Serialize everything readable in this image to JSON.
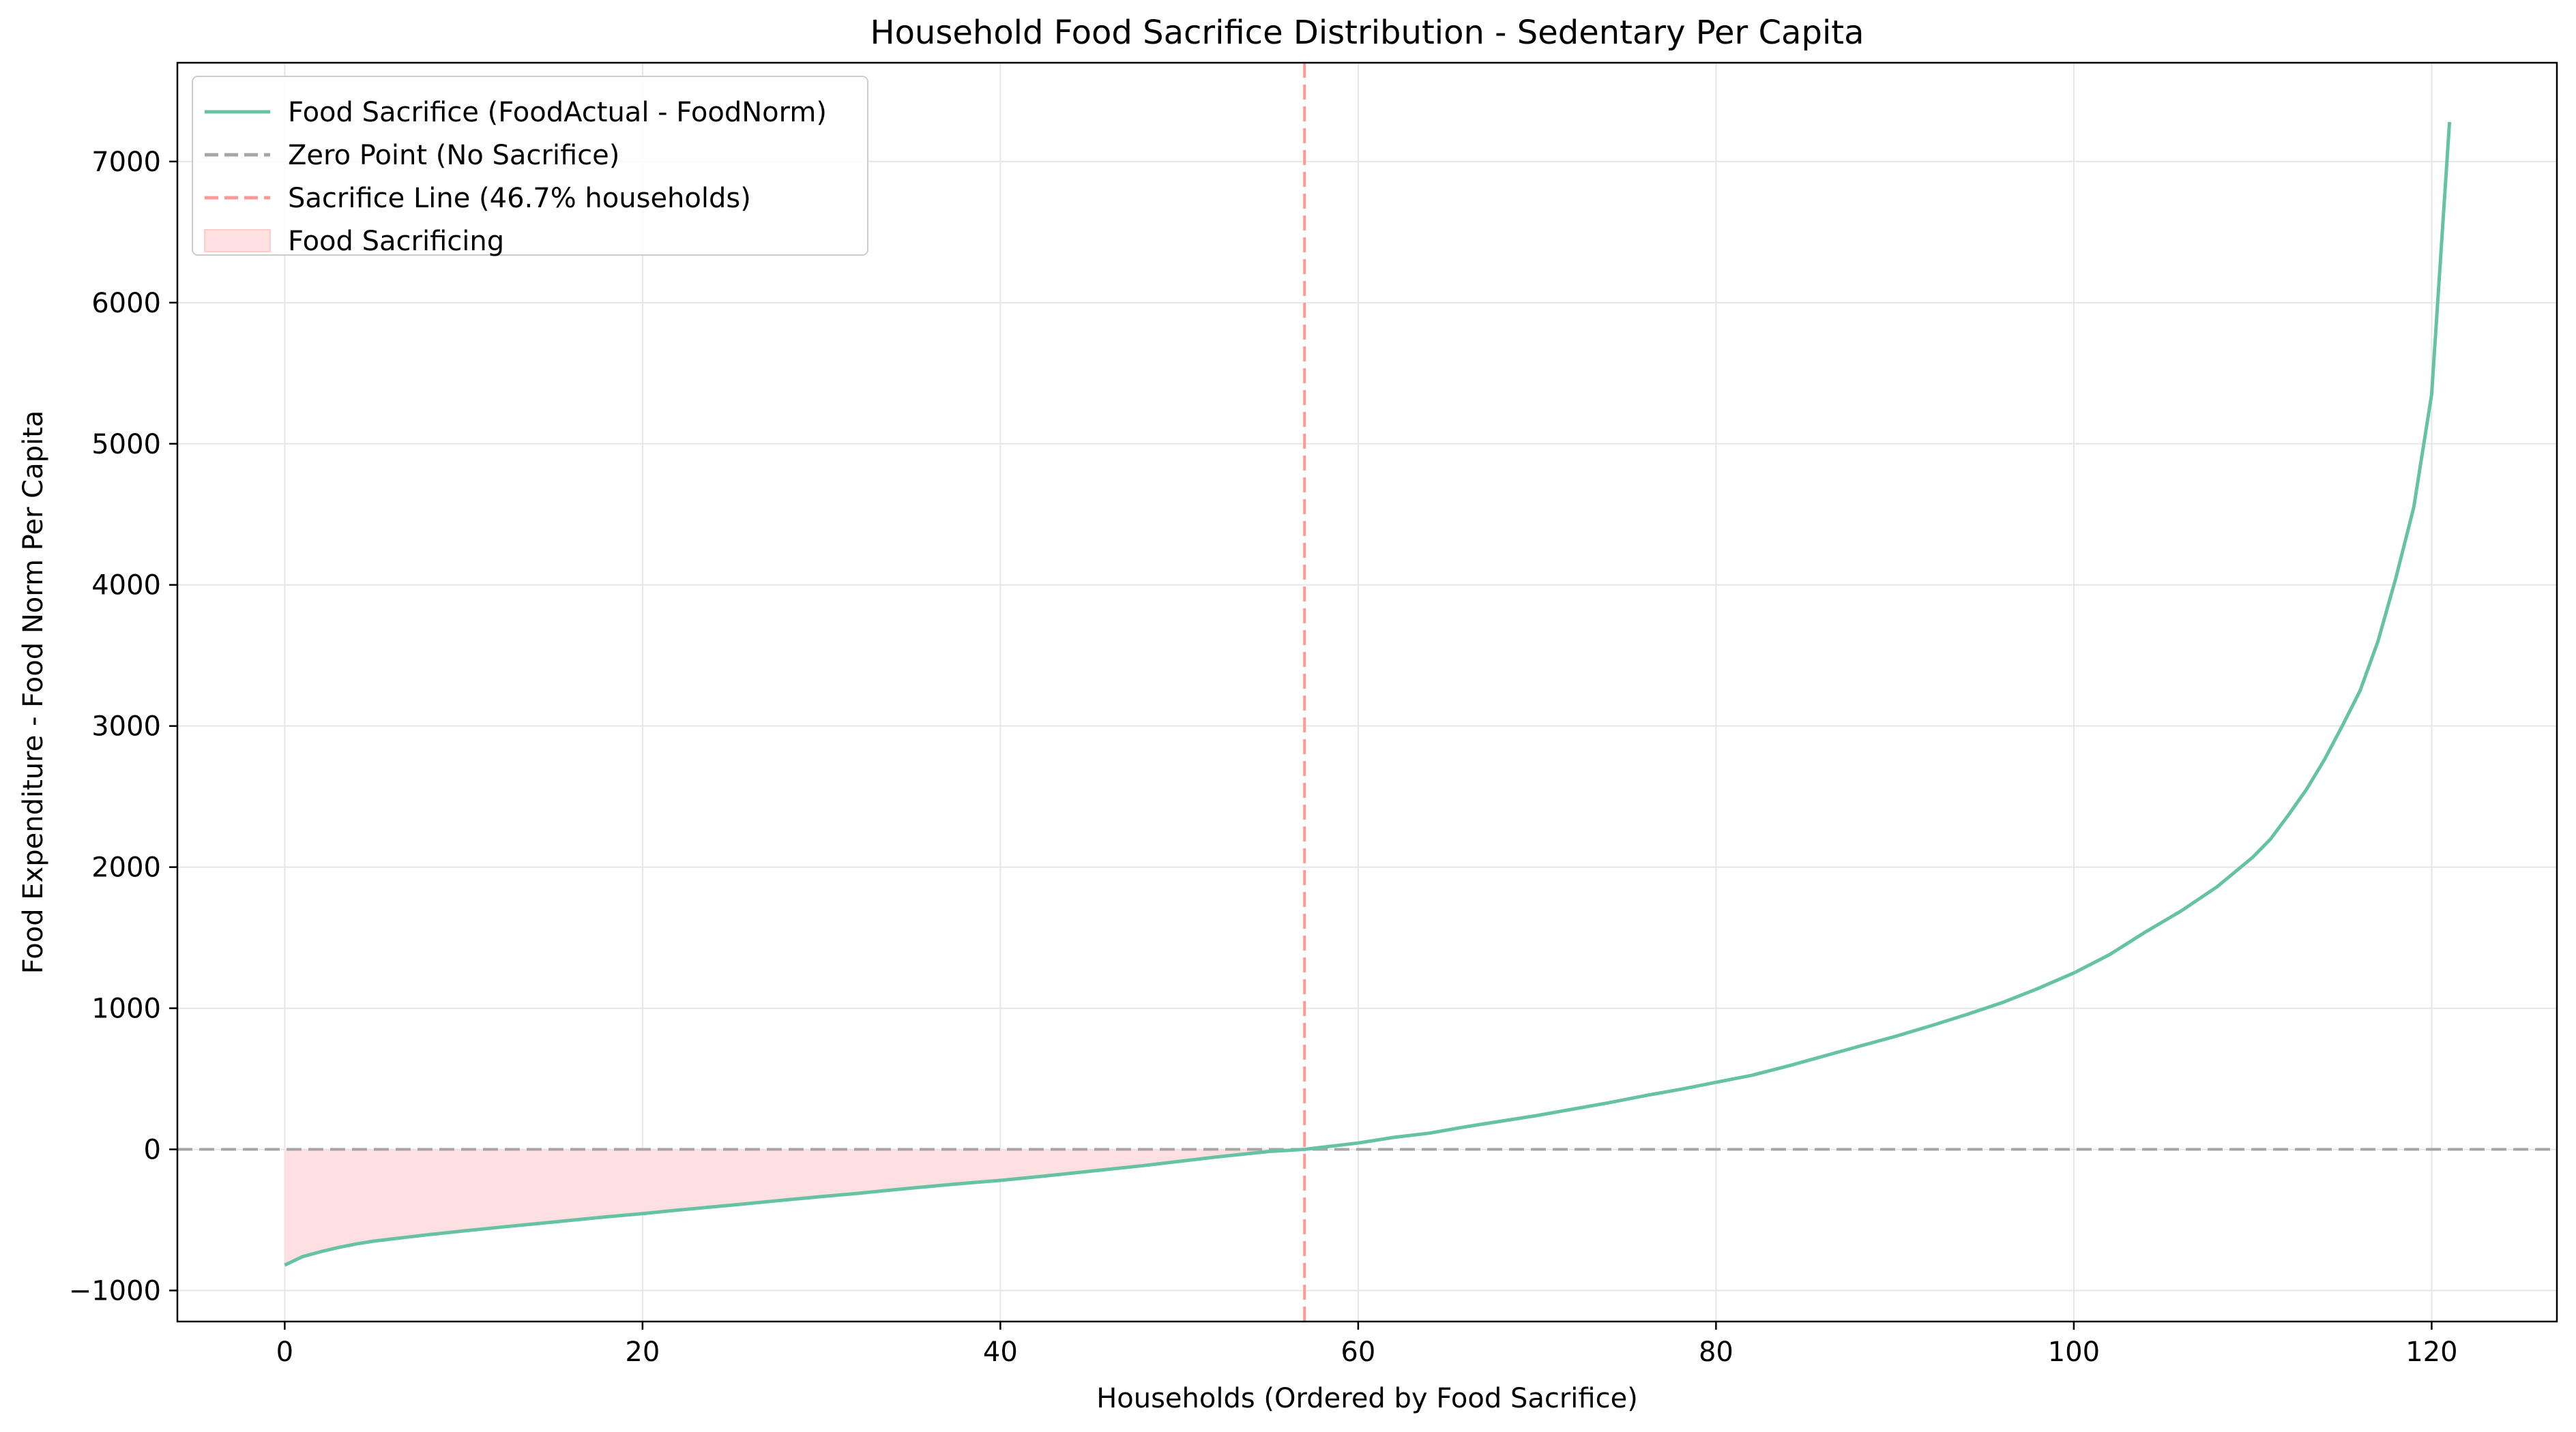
{
  "chart_data": {
    "type": "line",
    "title": "Household Food Sacrifice Distribution - Sedentary Per Capita",
    "xlabel": "Households (Ordered by Food Sacrifice)",
    "ylabel": "Food Expenditure - Food Norm Per Capita",
    "xlim": [
      -6,
      127
    ],
    "ylim": [
      -1220,
      7700
    ],
    "xticks": [
      0,
      20,
      40,
      60,
      80,
      100,
      120
    ],
    "yticks": [
      -1000,
      0,
      1000,
      2000,
      3000,
      4000,
      5000,
      6000,
      7000
    ],
    "xtick_labels": [
      "0",
      "20",
      "40",
      "60",
      "80",
      "100",
      "120"
    ],
    "ytick_labels": [
      "−1000",
      "0",
      "1000",
      "2000",
      "3000",
      "4000",
      "5000",
      "6000",
      "7000"
    ],
    "grid": true,
    "legend_position": "upper-left",
    "series": [
      {
        "name": "Food Sacrifice (FoodActual - FoodNorm)",
        "color": "#66c2a5",
        "style": "solid",
        "x": [
          0,
          1,
          2,
          3,
          4,
          5,
          6,
          8,
          10,
          12,
          15,
          18,
          20,
          22,
          25,
          28,
          30,
          32,
          35,
          38,
          40,
          42,
          45,
          48,
          50,
          52,
          55,
          57,
          58,
          60,
          62,
          64,
          66,
          68,
          70,
          72,
          74,
          76,
          78,
          80,
          82,
          84,
          86,
          88,
          90,
          92,
          94,
          96,
          98,
          100,
          102,
          104,
          106,
          108,
          110,
          111,
          112,
          113,
          114,
          115,
          116,
          117,
          118,
          119,
          120,
          121
        ],
        "y": [
          -820,
          -760,
          -725,
          -695,
          -670,
          -650,
          -635,
          -605,
          -578,
          -552,
          -515,
          -478,
          -455,
          -430,
          -395,
          -358,
          -335,
          -312,
          -275,
          -240,
          -220,
          -195,
          -155,
          -115,
          -85,
          -55,
          -15,
          0,
          15,
          45,
          85,
          115,
          160,
          200,
          240,
          285,
          330,
          380,
          425,
          475,
          525,
          590,
          660,
          730,
          800,
          875,
          955,
          1040,
          1140,
          1250,
          1380,
          1540,
          1690,
          1860,
          2070,
          2200,
          2370,
          2550,
          2760,
          3000,
          3250,
          3600,
          4050,
          4550,
          5350,
          7280
        ]
      },
      {
        "name": "Zero Point (No Sacrifice)",
        "color": "#a6a6a6",
        "style": "dashed",
        "y_constant": 0
      },
      {
        "name": "Sacrifice Line (46.7% households)",
        "color": "#ff9999",
        "style": "dashed",
        "x_constant": 57
      },
      {
        "name": "Food Sacrificing",
        "color": "#ffe0e0",
        "style": "area"
      }
    ]
  }
}
